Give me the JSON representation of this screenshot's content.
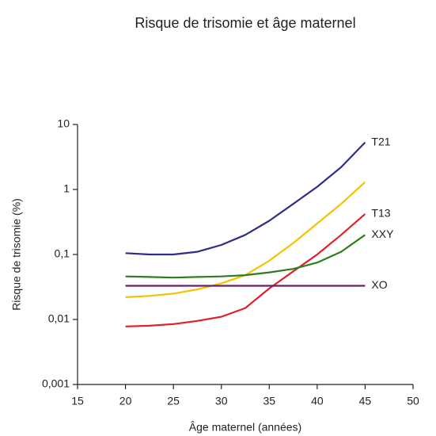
{
  "chart_data": {
    "type": "line",
    "title": "Risque de trisomie et âge maternel",
    "x_label": "Âge maternel (années)",
    "y_label": "Risque de trisomie (%)",
    "x": [
      20,
      22.5,
      25,
      27.5,
      30,
      32.5,
      35,
      37.5,
      40,
      42.5,
      45
    ],
    "xlim": [
      15,
      50
    ],
    "xticks": [
      15,
      20,
      25,
      30,
      35,
      40,
      45,
      50
    ],
    "ylim": [
      0.001,
      10
    ],
    "yticks": [
      {
        "value": 0.001,
        "label": "0,001"
      },
      {
        "value": 0.01,
        "label": "0,01"
      },
      {
        "value": 0.1,
        "label": "0,1"
      },
      1,
      10
    ],
    "log_y": true,
    "series": [
      {
        "name": "T21",
        "color": "#2e2e8a",
        "values": [
          0.105,
          0.1,
          0.1,
          0.11,
          0.14,
          0.2,
          0.33,
          0.6,
          1.1,
          2.2,
          5.3
        ]
      },
      {
        "color": "#f5c200",
        "values": [
          0.022,
          0.023,
          0.025,
          0.029,
          0.036,
          0.048,
          0.08,
          0.15,
          0.3,
          0.6,
          1.3
        ]
      },
      {
        "name": "T13",
        "color": "#e0202a",
        "values": [
          0.0078,
          0.008,
          0.0085,
          0.0095,
          0.011,
          0.015,
          0.03,
          0.055,
          0.1,
          0.2,
          0.42
        ]
      },
      {
        "name": "XXY",
        "color": "#2e7d1e",
        "values": [
          0.046,
          0.045,
          0.044,
          0.045,
          0.046,
          0.048,
          0.053,
          0.06,
          0.075,
          0.11,
          0.2
        ]
      },
      {
        "name": "XO",
        "color": "#6a1d6a",
        "values": [
          0.033,
          0.033,
          0.033,
          0.033,
          0.033,
          0.033,
          0.033,
          0.033,
          0.033,
          0.033,
          0.033
        ]
      }
    ]
  }
}
